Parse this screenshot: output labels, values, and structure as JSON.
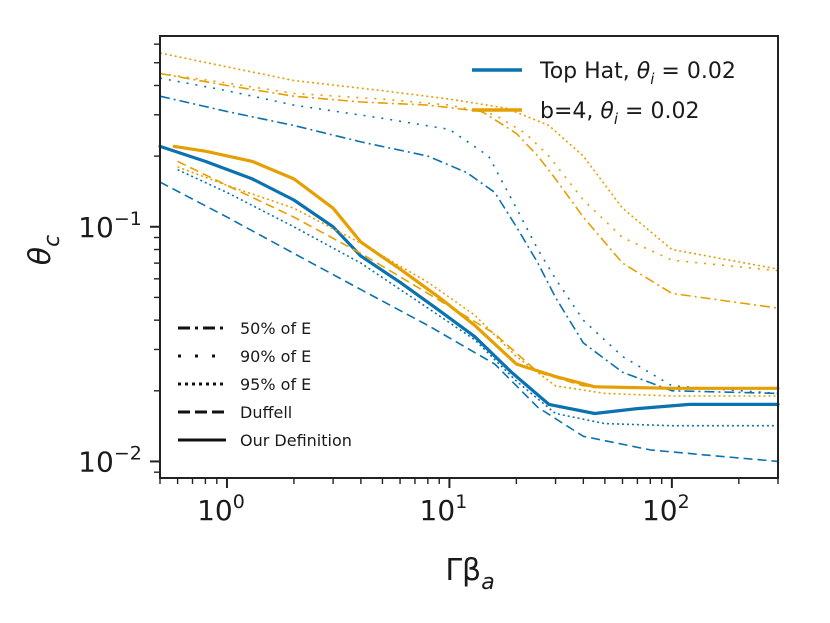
{
  "chart_data": {
    "type": "line",
    "title": "",
    "xscale": "log",
    "yscale": "log",
    "xlim": [
      0.5,
      300
    ],
    "ylim": [
      0.0085,
      0.65
    ],
    "xlabel": {
      "base": "Γβ",
      "sub": "a"
    },
    "ylabel": {
      "base": "θ",
      "sub": "c"
    },
    "xticks": [
      {
        "value": 1,
        "base": "10",
        "exp": "0"
      },
      {
        "value": 10,
        "base": "10",
        "exp": "1"
      },
      {
        "value": 100,
        "base": "10",
        "exp": "2"
      }
    ],
    "yticks": [
      {
        "value": 0.01,
        "base": "10",
        "exp": "−2"
      },
      {
        "value": 0.1,
        "base": "10",
        "exp": "−1"
      }
    ],
    "colors": {
      "top_hat": "#0b72b0",
      "b4": "#e69f00",
      "axis": "#222222"
    },
    "legend_top": [
      {
        "name": "Top Hat",
        "math_base": "θ",
        "math_sub": "i",
        "math_rest": " = 0.02",
        "color": "#0b72b0"
      },
      {
        "name": "b=4",
        "math_base": "θ",
        "math_sub": "i",
        "math_rest": " = 0.02",
        "color": "#e69f00"
      }
    ],
    "legend_bottom": [
      {
        "label": "50% of E",
        "style": "dashdot"
      },
      {
        "label": "90% of E",
        "style": "sparse-dot"
      },
      {
        "label": "95% of E",
        "style": "dotted"
      },
      {
        "label": "Duffell",
        "style": "dashed"
      },
      {
        "label": "Our Definition",
        "style": "solid"
      }
    ],
    "series": [
      {
        "name": "Top Hat — 50% of E",
        "family": "top_hat",
        "style": "dashdot",
        "points": [
          [
            0.5,
            0.36
          ],
          [
            1,
            0.31
          ],
          [
            2,
            0.27
          ],
          [
            4,
            0.23
          ],
          [
            8,
            0.2
          ],
          [
            12,
            0.17
          ],
          [
            16,
            0.14
          ],
          [
            20,
            0.1
          ],
          [
            25,
            0.07
          ],
          [
            30,
            0.05
          ],
          [
            40,
            0.032
          ],
          [
            60,
            0.024
          ],
          [
            100,
            0.02
          ],
          [
            300,
            0.0195
          ]
        ]
      },
      {
        "name": "Top Hat — 90% of E",
        "family": "top_hat",
        "style": "sparse-dot",
        "points": [
          [
            0.5,
            0.43
          ],
          [
            1,
            0.38
          ],
          [
            2,
            0.33
          ],
          [
            5,
            0.29
          ],
          [
            10,
            0.26
          ],
          [
            15,
            0.2
          ],
          [
            20,
            0.12
          ],
          [
            25,
            0.08
          ],
          [
            30,
            0.06
          ],
          [
            40,
            0.04
          ],
          [
            60,
            0.028
          ],
          [
            100,
            0.021
          ],
          [
            300,
            0.0195
          ]
        ]
      },
      {
        "name": "Top Hat — 95% of E",
        "family": "top_hat",
        "style": "dotted",
        "points": [
          [
            0.6,
            0.175
          ],
          [
            1,
            0.14
          ],
          [
            2,
            0.1
          ],
          [
            4,
            0.07
          ],
          [
            8,
            0.045
          ],
          [
            13,
            0.033
          ],
          [
            20,
            0.022
          ],
          [
            30,
            0.016
          ],
          [
            50,
            0.0145
          ],
          [
            100,
            0.0142
          ],
          [
            300,
            0.0142
          ]
        ]
      },
      {
        "name": "Top Hat — Duffell",
        "family": "top_hat",
        "style": "dashed",
        "points": [
          [
            0.5,
            0.155
          ],
          [
            1,
            0.11
          ],
          [
            2,
            0.077
          ],
          [
            4,
            0.054
          ],
          [
            8,
            0.038
          ],
          [
            16,
            0.026
          ],
          [
            25,
            0.017
          ],
          [
            40,
            0.0128
          ],
          [
            80,
            0.0112
          ],
          [
            150,
            0.0106
          ],
          [
            300,
            0.01
          ]
        ]
      },
      {
        "name": "Top Hat — Our Definition",
        "family": "top_hat",
        "style": "solid",
        "points": [
          [
            0.5,
            0.22
          ],
          [
            0.8,
            0.19
          ],
          [
            1.3,
            0.16
          ],
          [
            2,
            0.13
          ],
          [
            3,
            0.1
          ],
          [
            4,
            0.075
          ],
          [
            6,
            0.058
          ],
          [
            9,
            0.044
          ],
          [
            13,
            0.034
          ],
          [
            19,
            0.024
          ],
          [
            28,
            0.0175
          ],
          [
            45,
            0.016
          ],
          [
            70,
            0.0168
          ],
          [
            120,
            0.0175
          ],
          [
            300,
            0.0175
          ]
        ]
      },
      {
        "name": "b=4 — 50% of E",
        "family": "b4",
        "style": "dashdot",
        "points": [
          [
            0.5,
            0.45
          ],
          [
            1,
            0.4
          ],
          [
            2,
            0.36
          ],
          [
            4,
            0.34
          ],
          [
            8,
            0.33
          ],
          [
            14,
            0.31
          ],
          [
            20,
            0.25
          ],
          [
            25,
            0.2
          ],
          [
            30,
            0.16
          ],
          [
            40,
            0.11
          ],
          [
            60,
            0.07
          ],
          [
            100,
            0.052
          ],
          [
            300,
            0.045
          ]
        ]
      },
      {
        "name": "b=4 — 90% of E",
        "family": "b4",
        "style": "sparse-dot",
        "points": [
          [
            0.5,
            0.45
          ],
          [
            1,
            0.41
          ],
          [
            2,
            0.37
          ],
          [
            5,
            0.35
          ],
          [
            10,
            0.33
          ],
          [
            16,
            0.3
          ],
          [
            22,
            0.25
          ],
          [
            28,
            0.2
          ],
          [
            40,
            0.13
          ],
          [
            60,
            0.09
          ],
          [
            100,
            0.072
          ],
          [
            300,
            0.065
          ]
        ]
      },
      {
        "name": "b=4 — 95% of E",
        "family": "b4",
        "style": "dotted",
        "points": [
          [
            0.5,
            0.55
          ],
          [
            1,
            0.48
          ],
          [
            2,
            0.42
          ],
          [
            5,
            0.38
          ],
          [
            10,
            0.35
          ],
          [
            18,
            0.32
          ],
          [
            28,
            0.27
          ],
          [
            40,
            0.2
          ],
          [
            60,
            0.12
          ],
          [
            100,
            0.08
          ],
          [
            300,
            0.066
          ]
        ]
      },
      {
        "name": "b=4 — Duffell",
        "family": "b4",
        "style": "dashed",
        "points": [
          [
            0.6,
            0.19
          ],
          [
            1,
            0.15
          ],
          [
            2,
            0.11
          ],
          [
            4,
            0.077
          ],
          [
            8,
            0.052
          ],
          [
            16,
            0.035
          ],
          [
            25,
            0.024
          ],
          [
            40,
            0.021
          ],
          [
            100,
            0.0205
          ],
          [
            300,
            0.0205
          ]
        ]
      },
      {
        "name": "b=4 — Our Definition",
        "family": "b4",
        "style": "solid",
        "points": [
          [
            0.58,
            0.22
          ],
          [
            0.8,
            0.21
          ],
          [
            1.3,
            0.19
          ],
          [
            2,
            0.16
          ],
          [
            3,
            0.12
          ],
          [
            4,
            0.086
          ],
          [
            6,
            0.066
          ],
          [
            9,
            0.05
          ],
          [
            13,
            0.038
          ],
          [
            20,
            0.026
          ],
          [
            30,
            0.023
          ],
          [
            45,
            0.0208
          ],
          [
            100,
            0.0205
          ],
          [
            300,
            0.0205
          ]
        ]
      },
      {
        "name": "b=4 — 95% of E (inner)",
        "family": "b4",
        "style": "dotted",
        "points": [
          [
            0.6,
            0.18
          ],
          [
            1,
            0.15
          ],
          [
            2,
            0.12
          ],
          [
            4,
            0.085
          ],
          [
            8,
            0.058
          ],
          [
            13,
            0.042
          ],
          [
            20,
            0.028
          ],
          [
            30,
            0.021
          ],
          [
            50,
            0.0195
          ],
          [
            100,
            0.019
          ],
          [
            300,
            0.019
          ]
        ]
      }
    ]
  }
}
